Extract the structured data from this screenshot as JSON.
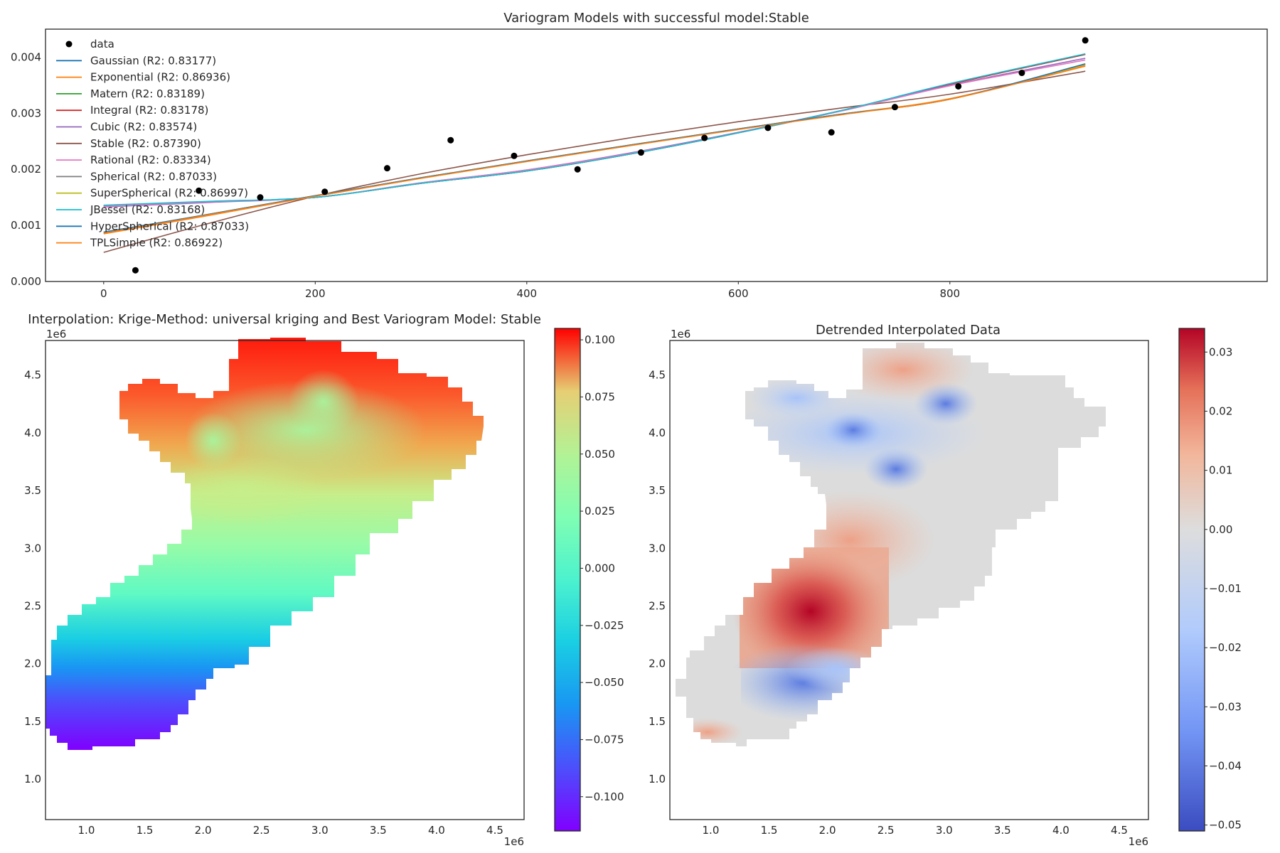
{
  "chart_data": [
    {
      "type": "scatter",
      "title": "Variogram Models with successful model:Stable",
      "xlim": [
        -55,
        1100
      ],
      "ylim": [
        0,
        0.0045
      ],
      "xticks": [
        "0",
        "200",
        "400",
        "600",
        "800"
      ],
      "xtick_values": [
        0,
        200,
        400,
        600,
        800
      ],
      "yticks": [
        "0.000",
        "0.001",
        "0.002",
        "0.003",
        "0.004"
      ],
      "ytick_values": [
        0,
        0.001,
        0.002,
        0.003,
        0.004
      ],
      "legend_position": "upper-left",
      "scatter": {
        "name": "data",
        "color": "#000000",
        "x": [
          30,
          90,
          148,
          209,
          268,
          328,
          388,
          448,
          508,
          568,
          628,
          688,
          748,
          808,
          868,
          928
        ],
        "y": [
          0.0002,
          0.00162,
          0.0015,
          0.0016,
          0.00202,
          0.00252,
          0.00224,
          0.002,
          0.0023,
          0.00256,
          0.00274,
          0.00266,
          0.00311,
          0.00348,
          0.00372,
          0.0043
        ]
      },
      "x_range": [
        0,
        928
      ],
      "series": [
        {
          "name": "Gaussian (R2: 0.83177)",
          "color": "#1f77b4",
          "x": [
            0,
            100,
            200,
            300,
            400,
            500,
            600,
            700,
            800,
            928
          ],
          "y": [
            0.00135,
            0.00142,
            0.0015,
            0.00175,
            0.00197,
            0.00228,
            0.00265,
            0.00306,
            0.00352,
            0.00405
          ]
        },
        {
          "name": "Exponential (R2: 0.86936)",
          "color": "#ff7f0e",
          "x": [
            0,
            100,
            200,
            300,
            400,
            500,
            600,
            700,
            800,
            928
          ],
          "y": [
            0.00085,
            0.00118,
            0.00152,
            0.00184,
            0.00214,
            0.00243,
            0.00272,
            0.00299,
            0.00326,
            0.00385
          ]
        },
        {
          "name": "Matern (R2: 0.83189)",
          "color": "#2ca02c",
          "x": [
            0,
            100,
            200,
            300,
            400,
            500,
            600,
            700,
            800,
            928
          ],
          "y": [
            0.00135,
            0.00142,
            0.0015,
            0.00175,
            0.00197,
            0.00228,
            0.00265,
            0.00306,
            0.00352,
            0.00405
          ]
        },
        {
          "name": "Integral (R2: 0.83178)",
          "color": "#d62728",
          "x": [
            0,
            100,
            200,
            300,
            400,
            500,
            600,
            700,
            800,
            928
          ],
          "y": [
            0.00135,
            0.00142,
            0.0015,
            0.00175,
            0.00197,
            0.00228,
            0.00265,
            0.00306,
            0.00352,
            0.00405
          ]
        },
        {
          "name": "Cubic (R2: 0.83574)",
          "color": "#9467bd",
          "x": [
            0,
            100,
            200,
            300,
            400,
            500,
            600,
            700,
            800,
            928
          ],
          "y": [
            0.00133,
            0.00141,
            0.0015,
            0.00176,
            0.00199,
            0.0023,
            0.00266,
            0.00306,
            0.0035,
            0.00398
          ]
        },
        {
          "name": "Stable (R2: 0.87390)",
          "color": "#8c564b",
          "x": [
            0,
            100,
            200,
            300,
            400,
            500,
            600,
            700,
            800,
            928
          ],
          "y": [
            0.00052,
            0.00104,
            0.00152,
            0.00192,
            0.00226,
            0.00257,
            0.00285,
            0.0031,
            0.00334,
            0.00375
          ]
        },
        {
          "name": "Rational (R2: 0.83334)",
          "color": "#e377c2",
          "x": [
            0,
            100,
            200,
            300,
            400,
            500,
            600,
            700,
            800,
            928
          ],
          "y": [
            0.00134,
            0.00142,
            0.0015,
            0.00176,
            0.00199,
            0.00229,
            0.00265,
            0.00305,
            0.00349,
            0.00395
          ]
        },
        {
          "name": "Spherical (R2: 0.87033)",
          "color": "#7f7f7f",
          "x": [
            0,
            100,
            200,
            300,
            400,
            500,
            600,
            700,
            800,
            928
          ],
          "y": [
            0.00088,
            0.0012,
            0.00153,
            0.00185,
            0.00215,
            0.00244,
            0.00272,
            0.00299,
            0.00325,
            0.00388
          ]
        },
        {
          "name": "SuperSpherical (R2: 0.86997)",
          "color": "#bcbd22",
          "x": [
            0,
            100,
            200,
            300,
            400,
            500,
            600,
            700,
            800,
            928
          ],
          "y": [
            0.00087,
            0.0012,
            0.00153,
            0.00185,
            0.00215,
            0.00244,
            0.00272,
            0.00299,
            0.00325,
            0.00387
          ]
        },
        {
          "name": "JBessel (R2: 0.83168)",
          "color": "#17becf",
          "x": [
            0,
            100,
            200,
            300,
            400,
            500,
            600,
            700,
            800,
            928
          ],
          "y": [
            0.00136,
            0.00143,
            0.0015,
            0.00175,
            0.00197,
            0.00228,
            0.00265,
            0.00306,
            0.00353,
            0.00406
          ]
        },
        {
          "name": "HyperSpherical (R2: 0.87033)",
          "color": "#1f77b4",
          "x": [
            0,
            100,
            200,
            300,
            400,
            500,
            600,
            700,
            800,
            928
          ],
          "y": [
            0.00088,
            0.0012,
            0.00153,
            0.00185,
            0.00215,
            0.00244,
            0.00272,
            0.00299,
            0.00325,
            0.00388
          ]
        },
        {
          "name": "TPLSimple (R2: 0.86922)",
          "color": "#ff7f0e",
          "x": [
            0,
            100,
            200,
            300,
            400,
            500,
            600,
            700,
            800,
            928
          ],
          "y": [
            0.00086,
            0.00119,
            0.00152,
            0.00184,
            0.00214,
            0.00243,
            0.00271,
            0.00298,
            0.00325,
            0.00384
          ]
        }
      ]
    },
    {
      "type": "heatmap",
      "title": "Interpolation: Krige-Method: universal kriging and Best Variogram Model: Stable",
      "colormap": "rainbow",
      "xlim": [
        0.65,
        4.75
      ],
      "ylim": [
        0.65,
        4.8
      ],
      "xticks": [
        "1.0",
        "1.5",
        "2.0",
        "2.5",
        "3.0",
        "3.5",
        "4.0",
        "4.5"
      ],
      "xtick_values": [
        1.0,
        1.5,
        2.0,
        2.5,
        3.0,
        3.5,
        4.0,
        4.5
      ],
      "yticks": [
        "1.0",
        "1.5",
        "2.0",
        "2.5",
        "3.0",
        "3.5",
        "4.0",
        "4.5"
      ],
      "ytick_values": [
        1.0,
        1.5,
        2.0,
        2.5,
        3.0,
        3.5,
        4.0,
        4.5
      ],
      "x_offset": "1e6",
      "y_offset": "1e6",
      "colorbar": {
        "range": [
          -0.115,
          0.105
        ],
        "ticks": [
          "0.100",
          "0.075",
          "0.050",
          "0.025",
          "0.000",
          "−0.025",
          "−0.050",
          "−0.075",
          "−0.100"
        ],
        "tick_values": [
          0.1,
          0.075,
          0.05,
          0.025,
          0,
          -0.025,
          -0.05,
          -0.075,
          -0.1
        ]
      }
    },
    {
      "type": "heatmap",
      "title": "Detrended Interpolated Data",
      "colormap": "coolwarm",
      "xlim": [
        0.65,
        4.75
      ],
      "ylim": [
        0.65,
        4.8
      ],
      "xticks": [
        "1.0",
        "1.5",
        "2.0",
        "2.5",
        "3.0",
        "3.5",
        "4.0",
        "4.5"
      ],
      "xtick_values": [
        1.0,
        1.5,
        2.0,
        2.5,
        3.0,
        3.5,
        4.0,
        4.5
      ],
      "yticks": [
        "1.0",
        "1.5",
        "2.0",
        "2.5",
        "3.0",
        "3.5",
        "4.0",
        "4.5"
      ],
      "ytick_values": [
        1.0,
        1.5,
        2.0,
        2.5,
        3.0,
        3.5,
        4.0,
        4.5
      ],
      "x_offset": "1e6",
      "y_offset": "1e6",
      "colorbar": {
        "range": [
          -0.051,
          0.034
        ],
        "ticks": [
          "0.03",
          "0.02",
          "0.01",
          "0.00",
          "−0.01",
          "−0.02",
          "−0.03",
          "−0.04",
          "−0.05"
        ],
        "tick_values": [
          0.03,
          0.02,
          0.01,
          0.0,
          -0.01,
          -0.02,
          -0.03,
          -0.04,
          -0.05
        ]
      }
    }
  ]
}
